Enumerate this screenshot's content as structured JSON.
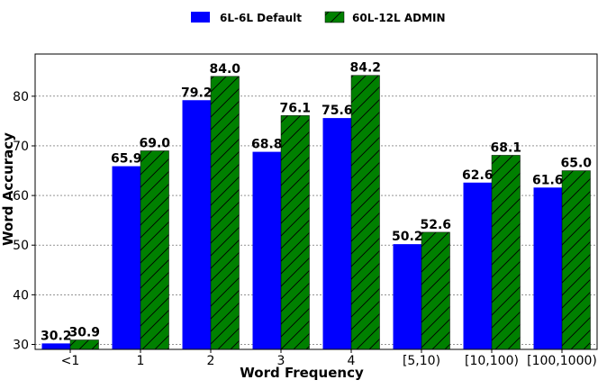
{
  "chart_data": {
    "type": "bar",
    "categories": [
      "<1",
      "1",
      "2",
      "3",
      "4",
      "[5,10)",
      "[10,100)",
      "[100,1000)"
    ],
    "series": [
      {
        "name": "6L-6L Default",
        "values": [
          30.2,
          65.9,
          79.2,
          68.8,
          75.6,
          50.2,
          62.6,
          61.6
        ],
        "color": "#0000ff",
        "hatch": "none"
      },
      {
        "name": "60L-12L ADMIN",
        "values": [
          30.9,
          69.0,
          84.0,
          76.1,
          84.2,
          52.6,
          68.1,
          65.0
        ],
        "color": "#008000",
        "hatch": "diagonal"
      }
    ],
    "xlabel": "Word Frequency",
    "ylabel": "Word Accuracy",
    "ylim": [
      29,
      88.5
    ],
    "yticks": [
      30,
      40,
      50,
      60,
      70,
      80
    ],
    "grid": "horizontal-dashed",
    "legend_position": "top-center"
  }
}
